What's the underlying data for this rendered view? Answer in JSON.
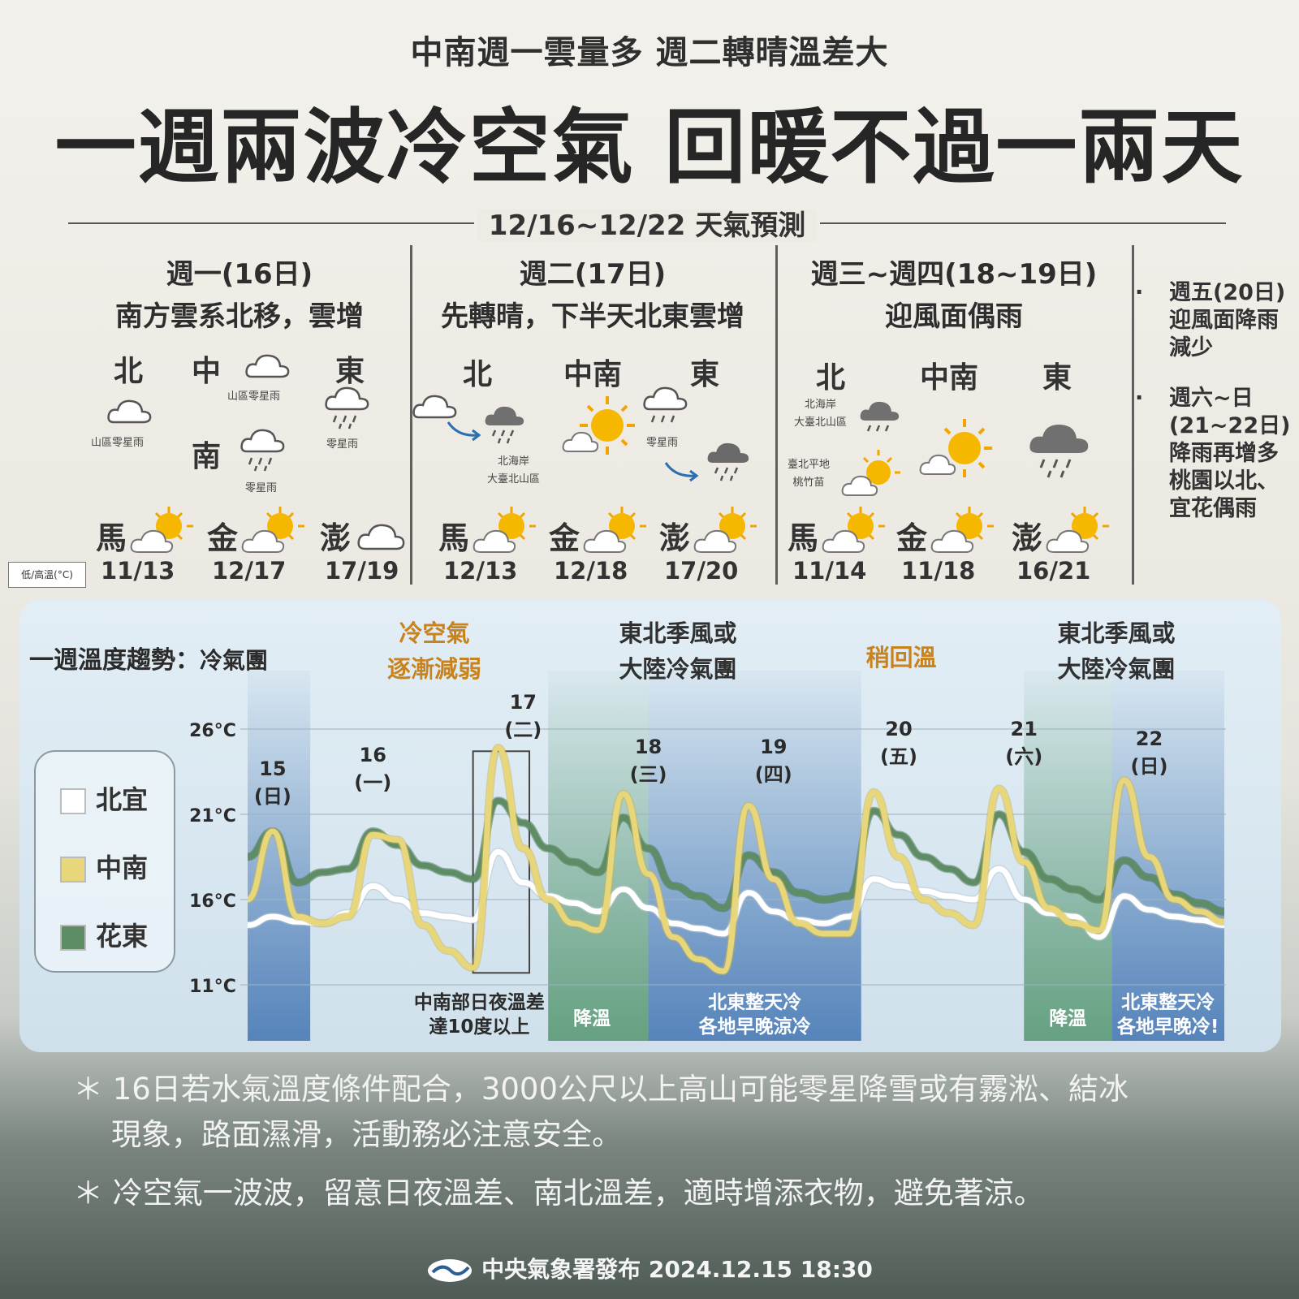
{
  "header": {
    "subtitle": "中南週一雲量多 週二轉晴溫差大",
    "title": "一週兩波冷空氣  回暖不過一兩天",
    "range": "12/16~12/22 天氣預測"
  },
  "unit_label": "低/高溫(°C)",
  "days": [
    {
      "title": "週一(16日)",
      "desc": "南方雲系北移，雲增",
      "regions": {
        "north": "北",
        "central": "中",
        "south": "南",
        "east": "東"
      },
      "notes": {
        "north": "山區零星雨",
        "central": "山區零星雨",
        "south": "零星雨",
        "east": "零星雨"
      },
      "islands": [
        {
          "name": "馬",
          "temp": "11/13"
        },
        {
          "name": "金",
          "temp": "12/17"
        },
        {
          "name": "澎",
          "temp": "17/19"
        }
      ]
    },
    {
      "title": "週二(17日)",
      "desc": "先轉晴，下半天北東雲增",
      "regions": {
        "north": "北",
        "central": "中南",
        "east": "東"
      },
      "notes": {
        "north": "北海岸\n大臺北山區",
        "east": "零星雨"
      },
      "islands": [
        {
          "name": "馬",
          "temp": "12/13"
        },
        {
          "name": "金",
          "temp": "12/18"
        },
        {
          "name": "澎",
          "temp": "17/20"
        }
      ]
    },
    {
      "title": "週三~週四(18~19日)",
      "desc": "迎風面偶雨",
      "regions": {
        "north": "北",
        "central": "中南",
        "east": "東"
      },
      "notes": {
        "north1": "北海岸\n大臺北山區",
        "north2": "臺北平地\n桃竹苗"
      },
      "islands": [
        {
          "name": "馬",
          "temp": "11/14"
        },
        {
          "name": "金",
          "temp": "11/18"
        },
        {
          "name": "澎",
          "temp": "16/21"
        }
      ]
    }
  ],
  "side_notes": [
    {
      "lines": [
        "週五(20日)",
        "迎風面降雨",
        "減少"
      ]
    },
    {
      "lines": [
        "週六~日",
        "(21~22日)",
        "降雨再增多",
        "桃園以北、",
        "宜花偶雨"
      ]
    }
  ],
  "trend": {
    "title": "一週溫度趨勢：",
    "title_small": "冷氣團",
    "annotations": [
      {
        "lines": [
          "冷空氣",
          "逐漸減弱"
        ]
      },
      {
        "lines": [
          "東北季風或",
          "大陸冷氣團"
        ]
      },
      {
        "lines": [
          "稍回溫"
        ]
      },
      {
        "lines": [
          "東北季風或",
          "大陸冷氣團"
        ]
      }
    ],
    "bottom_notes": [
      {
        "lines": [
          "中南部日夜溫差",
          "達10度以上"
        ]
      },
      {
        "lines": [
          "降溫"
        ]
      },
      {
        "lines": [
          "北東整天冷",
          "各地早晚涼冷"
        ]
      },
      {
        "lines": [
          "降溫"
        ]
      },
      {
        "lines": [
          "北東整天冷",
          "各地早晚冷!"
        ]
      }
    ],
    "legend": [
      "北宜",
      "中南",
      "花東"
    ]
  },
  "colors": {
    "north": "#ffffff",
    "central": "#e8d77a",
    "east": "#5e8c64",
    "cold_band": "#4f7fb8",
    "cool_band": "#5f9d7a",
    "accent": "#c8821e"
  },
  "chart_data": {
    "type": "line",
    "ylabel": "",
    "yticks": [
      "26°C",
      "21°C",
      "16°C",
      "11°C"
    ],
    "ylim": [
      11,
      26
    ],
    "day_labels": [
      {
        "date": "15",
        "dow": "(日)"
      },
      {
        "date": "16",
        "dow": "(一)"
      },
      {
        "date": "17",
        "dow": "(二)"
      },
      {
        "date": "18",
        "dow": "(三)"
      },
      {
        "date": "19",
        "dow": "(四)"
      },
      {
        "date": "20",
        "dow": "(五)"
      },
      {
        "date": "21",
        "dow": "(六)"
      },
      {
        "date": "22",
        "dow": "(日)"
      }
    ],
    "x": [
      15.0,
      15.2,
      15.4,
      15.6,
      15.8,
      16.0,
      16.2,
      16.4,
      16.6,
      16.8,
      17.0,
      17.2,
      17.4,
      17.6,
      17.8,
      18.0,
      18.2,
      18.4,
      18.6,
      18.8,
      19.0,
      19.2,
      19.4,
      19.6,
      19.8,
      20.0,
      20.2,
      20.4,
      20.6,
      20.8,
      21.0,
      21.2,
      21.4,
      21.6,
      21.8,
      22.0,
      22.2,
      22.4,
      22.6,
      22.8
    ],
    "series": [
      {
        "name": "北宜",
        "values": [
          14.5,
          15,
          14.7,
          14.6,
          15.2,
          16.8,
          16,
          15.2,
          15,
          14.8,
          18.8,
          17,
          16.2,
          15.8,
          15.3,
          16.6,
          15.5,
          14.6,
          14.3,
          14,
          16.4,
          15.3,
          14.8,
          14.6,
          15,
          17.2,
          16.8,
          16.5,
          16.2,
          16,
          17.8,
          16,
          15.2,
          15,
          13.8,
          16.2,
          15.4,
          15,
          14.8,
          14.5
        ]
      },
      {
        "name": "中南",
        "values": [
          16,
          20,
          15,
          14.6,
          15,
          19.8,
          19.5,
          14.5,
          13,
          12,
          24.9,
          19,
          16,
          14.6,
          14.2,
          22.2,
          17.5,
          13.8,
          12.5,
          11.8,
          21.5,
          17.2,
          14.6,
          14,
          14,
          22.3,
          18.5,
          16,
          15.2,
          14.5,
          22.5,
          18.2,
          15.5,
          14.6,
          14.2,
          23,
          18.5,
          16,
          15.3,
          14.7
        ]
      },
      {
        "name": "花東",
        "values": [
          18.5,
          20,
          17,
          17.6,
          17.8,
          20,
          19.2,
          18,
          17.6,
          17.2,
          21.8,
          20.5,
          19,
          18.2,
          17.6,
          20.8,
          19,
          16.8,
          16.2,
          15.5,
          18.6,
          17.6,
          16.4,
          16,
          16.2,
          21.2,
          19.8,
          18.5,
          17.8,
          17,
          21,
          18.8,
          17.2,
          16.6,
          16,
          18.3,
          17.3,
          16.3,
          15.8,
          15.3
        ]
      }
    ]
  },
  "footer": {
    "notes": [
      {
        "lines": [
          "＊ 16日若水氣溫度條件配合，3000公尺以上高山可能零星降雪或有霧淞、結冰",
          "    現象，路面濕滑，活動務必注意安全。"
        ]
      },
      {
        "lines": [
          "＊ 冷空氣一波波，留意日夜溫差、南北溫差，適時增添衣物，避免著涼。"
        ]
      }
    ],
    "credit": "中央氣象署發布 2024.12.15  18:30"
  }
}
